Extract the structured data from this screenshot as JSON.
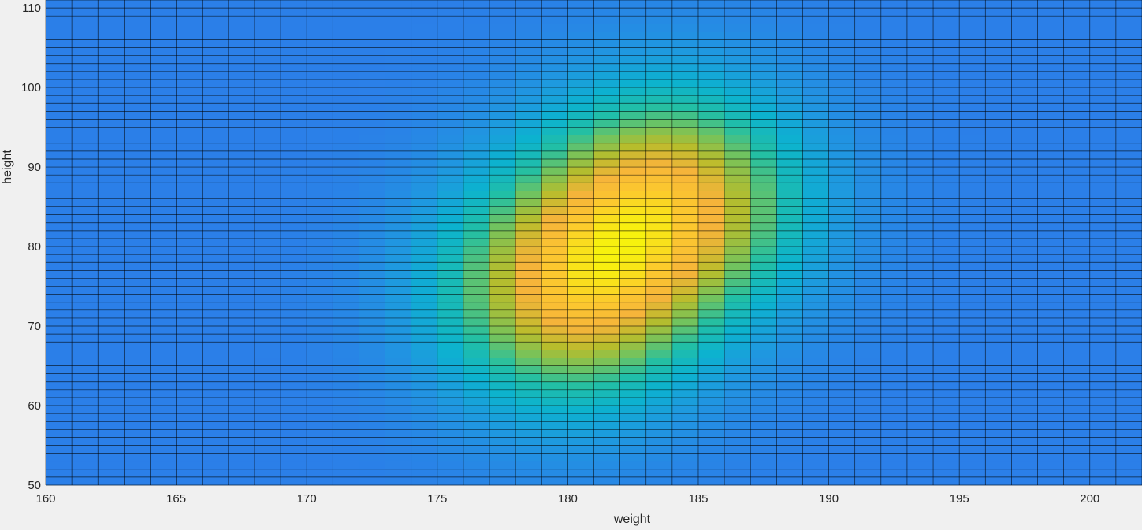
{
  "chart_data": {
    "type": "heatmap",
    "title": "",
    "xlabel": "weight",
    "ylabel": "height",
    "xlim": [
      160,
      202
    ],
    "ylim": [
      50,
      111
    ],
    "x_ticks": [
      160,
      165,
      170,
      175,
      180,
      185,
      190,
      195,
      200
    ],
    "y_ticks": [
      50,
      60,
      70,
      80,
      90,
      100,
      110
    ],
    "x_tick_labels": [
      "160",
      "165",
      "170",
      "175",
      "180",
      "185",
      "190",
      "195",
      "200"
    ],
    "y_tick_labels": [
      "50",
      "60",
      "70",
      "80",
      "90",
      "100",
      "110"
    ],
    "x_step": 1,
    "y_step": 1,
    "colormap": "parula",
    "grid": "cell edges drawn in black",
    "surface": {
      "description_values": "relative density, 0 to 1",
      "peak_center": [
        182.5,
        80
      ],
      "components": [
        {
          "mean": [
            180,
            74
          ],
          "sd": [
            3.5,
            10
          ],
          "weight": 1.0
        },
        {
          "mean": [
            184,
            86
          ],
          "sd": [
            3.5,
            10
          ],
          "weight": 1.0
        }
      ]
    },
    "colorscale_stops": [
      {
        "v": 0.0,
        "color": "#2b7fe8"
      },
      {
        "v": 0.12,
        "color": "#1f98e0"
      },
      {
        "v": 0.25,
        "color": "#0cb2cf"
      },
      {
        "v": 0.38,
        "color": "#22bfa5"
      },
      {
        "v": 0.5,
        "color": "#72c35e"
      },
      {
        "v": 0.62,
        "color": "#b8bd2c"
      },
      {
        "v": 0.75,
        "color": "#f6b43a"
      },
      {
        "v": 0.88,
        "color": "#fcc92e"
      },
      {
        "v": 1.0,
        "color": "#f7f40c"
      }
    ]
  },
  "colors": {
    "background": "#f0f0f0",
    "grid_line": "#000000",
    "text": "#262626"
  }
}
